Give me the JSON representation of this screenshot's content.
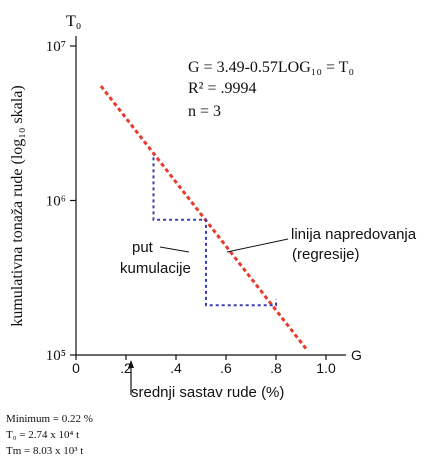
{
  "chart_data": {
    "type": "line",
    "y_axis_top_label": "T₀",
    "ylabel": "kumulativna tonaža rude (log₁₀ skala)",
    "xlabel": "srednji sastav rude (%)",
    "x_unit_label": "G",
    "y_scale": "log",
    "xlim": [
      0,
      1.0
    ],
    "ylim": [
      100000,
      10000000
    ],
    "x_ticks": [
      {
        "value": 0,
        "label": "0"
      },
      {
        "value": 0.2,
        "label": ".2"
      },
      {
        "value": 0.4,
        "label": ".4"
      },
      {
        "value": 0.6,
        "label": ".6"
      },
      {
        "value": 0.8,
        "label": ".8"
      },
      {
        "value": 1.0,
        "label": "1.0"
      }
    ],
    "y_ticks": [
      {
        "value": 100000,
        "label": "10⁵"
      },
      {
        "value": 1000000,
        "label": "10⁶"
      },
      {
        "value": 10000000,
        "label": "10⁷"
      }
    ],
    "series": [
      {
        "name": "linija napredovanja (regresije)",
        "style": "dashed",
        "color": "#e83a2a",
        "x": [
          0.1,
          0.92
        ],
        "y": [
          5500000,
          110000
        ]
      },
      {
        "name": "put kumulacije",
        "style": "dashed",
        "color": "#3a3fb0",
        "x": [
          0.31,
          0.31,
          0.52,
          0.52,
          0.8,
          0.8
        ],
        "y": [
          1900000,
          750000,
          750000,
          210000,
          210000,
          230000
        ]
      }
    ],
    "annotations": {
      "equation": "G = 3.49-0.57LOG₁₀ = T₀",
      "r_squared": "R² = .9994",
      "n": "n = 3",
      "regression_label_line1": "linija napredovanja",
      "regression_label_line2": "(regresije)",
      "path_label_line1": "put",
      "path_label_line2": "kumulacije",
      "marker_x": 0.22
    },
    "footnotes": [
      "Minimum = 0.22 %",
      "T₀ = 2.74 x 10⁴ t",
      "Tm = 8.03 x 10³ t"
    ],
    "grid": false,
    "legend": "none"
  }
}
